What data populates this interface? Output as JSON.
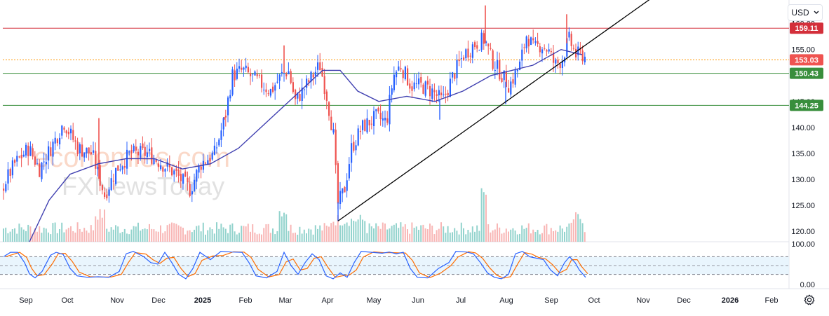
{
  "header": {
    "currency": "USD",
    "currency_icon": "chevron-down-icon"
  },
  "settings_icon": "gear-icon",
  "watermark": {
    "primary": "economies.com",
    "secondary": "FXNewsToday"
  },
  "colors": {
    "up": "#2962ff",
    "down": "#ef5350",
    "ma": "#3f3fb0",
    "resistance": "#d32f3a",
    "support": "#388e3c",
    "dotted": "#ff9800",
    "trendline": "#000000",
    "vol_up": "#80cbc4",
    "vol_down": "#f7a9a8",
    "stoch_k": "#2962ff",
    "stoch_d": "#ff6d00",
    "stoch_band": "#e3f2fd"
  },
  "chart_data": [
    {
      "type": "candlestick",
      "title": "",
      "ylim": [
        118,
        164
      ],
      "yticks": [
        "120.00",
        "125.00",
        "130.00",
        "135.00",
        "140.00",
        "145.00",
        "150.00",
        "155.00",
        "160.00"
      ],
      "xticks": [
        "Sep",
        "Oct",
        "Nov",
        "Dec",
        "2025",
        "Feb",
        "Mar",
        "Apr",
        "May",
        "Jun",
        "Jul",
        "Aug",
        "Sep",
        "Oct",
        "Nov",
        "Dec",
        "2026",
        "Feb"
      ],
      "price_series": {
        "months": [
          "2024-09",
          "2024-10",
          "2024-11",
          "2024-12",
          "2025-01",
          "2025-02",
          "2025-03",
          "2025-04",
          "2025-05",
          "2025-06",
          "2025-07",
          "2025-08",
          "2025-09"
        ],
        "anchors": [
          [
            0,
            128
          ],
          [
            20,
            133
          ],
          [
            40,
            136
          ],
          [
            55,
            132
          ],
          [
            75,
            137
          ],
          [
            90,
            141
          ],
          [
            110,
            136
          ],
          [
            130,
            135
          ],
          [
            148,
            127
          ],
          [
            165,
            132
          ],
          [
            185,
            135
          ],
          [
            210,
            135
          ],
          [
            230,
            133
          ],
          [
            250,
            131
          ],
          [
            270,
            128
          ],
          [
            285,
            133
          ],
          [
            305,
            135
          ],
          [
            320,
            142
          ],
          [
            330,
            150
          ],
          [
            345,
            151
          ],
          [
            365,
            149
          ],
          [
            385,
            147
          ],
          [
            400,
            150
          ],
          [
            410,
            151
          ],
          [
            420,
            145
          ],
          [
            435,
            148
          ],
          [
            455,
            152
          ],
          [
            465,
            146
          ],
          [
            475,
            138
          ],
          [
            480,
            125
          ],
          [
            490,
            128
          ],
          [
            500,
            136
          ],
          [
            515,
            140
          ],
          [
            535,
            142
          ],
          [
            550,
            141
          ],
          [
            560,
            150
          ],
          [
            570,
            152
          ],
          [
            585,
            148
          ],
          [
            600,
            148
          ],
          [
            615,
            147
          ],
          [
            630,
            145
          ],
          [
            645,
            150
          ],
          [
            660,
            154
          ],
          [
            675,
            156
          ],
          [
            690,
            157
          ],
          [
            700,
            153
          ],
          [
            715,
            150
          ],
          [
            725,
            148
          ],
          [
            740,
            152
          ],
          [
            750,
            158
          ],
          [
            760,
            155
          ],
          [
            770,
            156
          ],
          [
            780,
            155
          ],
          [
            790,
            152
          ],
          [
            800,
            153
          ],
          [
            810,
            157
          ],
          [
            820,
            154
          ],
          [
            830,
            154
          ],
          [
            836,
            153
          ]
        ]
      },
      "moving_average": {
        "anchors": [
          [
            42,
            118
          ],
          [
            70,
            126
          ],
          [
            100,
            131
          ],
          [
            140,
            133
          ],
          [
            180,
            134
          ],
          [
            220,
            134
          ],
          [
            260,
            132
          ],
          [
            300,
            133
          ],
          [
            340,
            136
          ],
          [
            380,
            141
          ],
          [
            420,
            146
          ],
          [
            460,
            151
          ],
          [
            485,
            151
          ],
          [
            510,
            147
          ],
          [
            540,
            145
          ],
          [
            580,
            146
          ],
          [
            620,
            145
          ],
          [
            660,
            147
          ],
          [
            700,
            150
          ],
          [
            730,
            151
          ],
          [
            760,
            152
          ],
          [
            800,
            155
          ],
          [
            830,
            154
          ]
        ]
      },
      "horizontal_levels": [
        {
          "label": "159.11",
          "value": 159.11,
          "kind": "resistance"
        },
        {
          "label": "153.03",
          "value": 153.03,
          "kind": "current"
        },
        {
          "label": "150.43",
          "value": 150.43,
          "kind": "support"
        },
        {
          "label": "144.25",
          "value": 144.25,
          "kind": "support"
        }
      ],
      "trendline": [
        [
          482,
          122
        ],
        [
          930,
          165
        ]
      ]
    },
    {
      "type": "stochastic",
      "ylim": [
        0,
        100
      ],
      "yticks": [
        "100.00",
        "0.00"
      ],
      "bands": [
        80,
        20
      ],
      "k_anchors": [
        [
          5,
          80
        ],
        [
          15,
          95
        ],
        [
          25,
          95
        ],
        [
          35,
          60
        ],
        [
          42,
          22
        ],
        [
          50,
          8
        ],
        [
          60,
          30
        ],
        [
          72,
          85
        ],
        [
          80,
          95
        ],
        [
          90,
          88
        ],
        [
          100,
          40
        ],
        [
          110,
          15
        ],
        [
          125,
          10
        ],
        [
          140,
          12
        ],
        [
          155,
          10
        ],
        [
          170,
          30
        ],
        [
          180,
          90
        ],
        [
          190,
          98
        ],
        [
          205,
          80
        ],
        [
          215,
          60
        ],
        [
          225,
          55
        ],
        [
          235,
          95
        ],
        [
          245,
          60
        ],
        [
          255,
          20
        ],
        [
          265,
          5
        ],
        [
          275,
          40
        ],
        [
          285,
          95
        ],
        [
          300,
          70
        ],
        [
          315,
          98
        ],
        [
          330,
          96
        ],
        [
          345,
          95
        ],
        [
          355,
          60
        ],
        [
          365,
          15
        ],
        [
          380,
          8
        ],
        [
          395,
          30
        ],
        [
          405,
          95
        ],
        [
          415,
          50
        ],
        [
          425,
          20
        ],
        [
          435,
          60
        ],
        [
          445,
          90
        ],
        [
          455,
          70
        ],
        [
          465,
          15
        ],
        [
          475,
          5
        ],
        [
          485,
          25
        ],
        [
          495,
          10
        ],
        [
          505,
          60
        ],
        [
          515,
          98
        ],
        [
          530,
          95
        ],
        [
          545,
          92
        ],
        [
          555,
          96
        ],
        [
          565,
          90
        ],
        [
          575,
          95
        ],
        [
          585,
          40
        ],
        [
          595,
          10
        ],
        [
          610,
          8
        ],
        [
          625,
          40
        ],
        [
          640,
          60
        ],
        [
          650,
          98
        ],
        [
          665,
          96
        ],
        [
          675,
          90
        ],
        [
          685,
          60
        ],
        [
          695,
          25
        ],
        [
          705,
          10
        ],
        [
          715,
          5
        ],
        [
          725,
          20
        ],
        [
          735,
          90
        ],
        [
          745,
          98
        ],
        [
          755,
          80
        ],
        [
          765,
          75
        ],
        [
          775,
          70
        ],
        [
          785,
          35
        ],
        [
          795,
          15
        ],
        [
          805,
          60
        ],
        [
          812,
          80
        ],
        [
          820,
          60
        ],
        [
          826,
          35
        ],
        [
          835,
          10
        ]
      ]
    },
    {
      "type": "volume",
      "note": "volume histogram beneath price"
    }
  ]
}
